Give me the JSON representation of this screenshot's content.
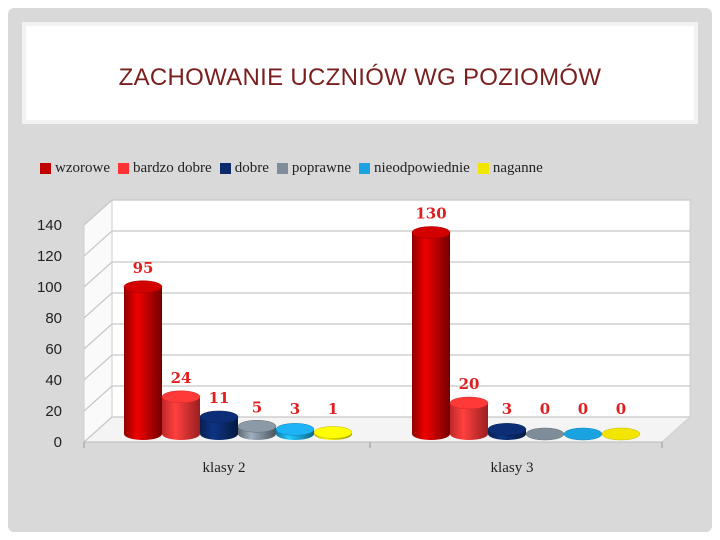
{
  "title": "ZACHOWANIE UCZNIÓW WG POZIOMÓW",
  "chart_data": {
    "type": "bar",
    "categories": [
      "klasy 2",
      "klasy 3"
    ],
    "series": [
      {
        "name": "wzorowe",
        "values": [
          95,
          130
        ],
        "labels": [
          "95",
          "130"
        ],
        "color": "#c00000"
      },
      {
        "name": "bardzo dobre",
        "values": [
          24,
          20
        ],
        "labels": [
          "24",
          "20"
        ],
        "color": "#ff3333"
      },
      {
        "name": "dobre",
        "values": [
          11,
          3
        ],
        "labels": [
          "11",
          "3"
        ],
        "color": "#0a2a6b"
      },
      {
        "name": "poprawne",
        "values": [
          5,
          0
        ],
        "labels": [
          "5",
          "0"
        ],
        "color": "#7f8c99"
      },
      {
        "name": "nieodpowiednie",
        "values": [
          3,
          0
        ],
        "labels": [
          "3",
          "0"
        ],
        "color": "#1aa3e0"
      },
      {
        "name": "naganne",
        "values": [
          1,
          0
        ],
        "labels": [
          "1",
          "0"
        ],
        "color": "#f2e600"
      }
    ],
    "y_ticks": [
      "0",
      "20",
      "40",
      "60",
      "80",
      "100",
      "120",
      "140"
    ],
    "ylim": [
      0,
      140
    ],
    "grid": true,
    "legend": "top",
    "label_color": "#e02020"
  }
}
